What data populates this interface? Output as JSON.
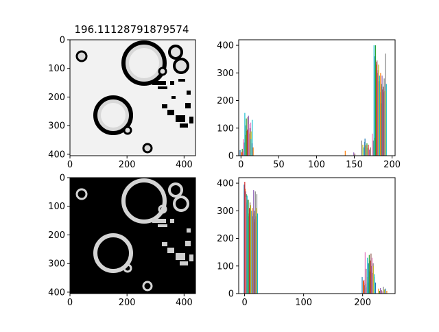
{
  "figure_title": "196.11128791879574",
  "colors": {
    "axes": "#000000",
    "background": "#ffffff",
    "cycle": [
      "#1f77b4",
      "#ff7f0e",
      "#2ca02c",
      "#d62728",
      "#9467bd",
      "#8c564b",
      "#e377c2",
      "#7f7f7f",
      "#bcbd22",
      "#17becf"
    ]
  },
  "chart_data": [
    {
      "type": "image",
      "panel": "top-left",
      "title": "196.11128791879574",
      "description_kind": "grayscale photo of rings with dark thresholded boundaries on light background",
      "xlim": [
        0,
        440
      ],
      "ylim": [
        405,
        0
      ],
      "xticks": [
        0,
        200,
        400
      ],
      "yticks": [
        0,
        100,
        200,
        300,
        400
      ]
    },
    {
      "type": "bar",
      "panel": "top-right",
      "title": "",
      "xlim": [
        -3,
        204
      ],
      "ylim": [
        0,
        420
      ],
      "xticks": [
        0,
        50,
        100,
        150,
        200
      ],
      "yticks": [
        0,
        100,
        200,
        300,
        400
      ],
      "grid": false,
      "series": [
        {
          "x": 1,
          "values": [
            20,
            12,
            25,
            6
          ]
        },
        {
          "x": 3,
          "values": [
            14,
            8,
            18
          ]
        },
        {
          "x": 6,
          "values": [
            60,
            48,
            75,
            42,
            55
          ]
        },
        {
          "x": 8,
          "values": [
            155,
            110,
            90,
            130,
            70
          ]
        },
        {
          "x": 10,
          "values": [
            135,
            95,
            145,
            80,
            120
          ]
        },
        {
          "x": 12,
          "values": [
            140,
            115,
            100,
            88,
            130
          ]
        },
        {
          "x": 14,
          "values": [
            85,
            60,
            45,
            30
          ]
        },
        {
          "x": 138,
          "values": [
            18
          ]
        },
        {
          "x": 150,
          "values": [
            12,
            8
          ]
        },
        {
          "x": 162,
          "values": [
            55,
            40,
            30,
            62
          ]
        },
        {
          "x": 166,
          "values": [
            50,
            38,
            45,
            28
          ]
        },
        {
          "x": 170,
          "values": [
            40,
            22,
            30
          ]
        },
        {
          "x": 176,
          "values": [
            80,
            55,
            65,
            40
          ]
        },
        {
          "x": 179,
          "values": [
            400,
            360,
            330,
            290,
            250
          ]
        },
        {
          "x": 181,
          "values": [
            400,
            340,
            300,
            270,
            210
          ]
        },
        {
          "x": 183,
          "values": [
            345,
            310,
            260,
            230,
            190
          ]
        },
        {
          "x": 185,
          "values": [
            330,
            290,
            250,
            240,
            200
          ]
        },
        {
          "x": 187,
          "values": [
            300,
            260,
            240,
            230
          ]
        },
        {
          "x": 189,
          "values": [
            290,
            250,
            235,
            370
          ]
        },
        {
          "x": 191,
          "values": [
            280,
            235,
            260
          ]
        }
      ]
    },
    {
      "type": "image",
      "panel": "bottom-left",
      "title": "",
      "description_kind": "inverted binary image: white rings on black background",
      "xlim": [
        0,
        440
      ],
      "ylim": [
        405,
        0
      ],
      "xticks": [
        0,
        200,
        400
      ],
      "yticks": [
        0,
        100,
        200,
        300,
        400
      ]
    },
    {
      "type": "bar",
      "panel": "bottom-right",
      "title": "",
      "xlim": [
        -10,
        255
      ],
      "ylim": [
        0,
        420
      ],
      "xticks": [
        0,
        100,
        200
      ],
      "yticks": [
        0,
        100,
        200,
        300,
        400
      ],
      "grid": false,
      "series": [
        {
          "x": 2,
          "values": [
            395,
            380,
            360,
            340
          ]
        },
        {
          "x": 4,
          "values": [
            405,
            370,
            320,
            300,
            280
          ]
        },
        {
          "x": 6,
          "values": [
            350,
            330,
            300,
            290,
            260
          ]
        },
        {
          "x": 8,
          "values": [
            355,
            320,
            290,
            270,
            250
          ]
        },
        {
          "x": 10,
          "values": [
            340,
            310,
            300,
            260,
            240
          ]
        },
        {
          "x": 12,
          "values": [
            330,
            300,
            290,
            280
          ]
        },
        {
          "x": 14,
          "values": [
            320,
            300,
            280,
            260,
            255
          ]
        },
        {
          "x": 16,
          "values": [
            310,
            290,
            270,
            260
          ]
        },
        {
          "x": 18,
          "values": [
            375,
            300,
            280,
            360
          ]
        },
        {
          "x": 20,
          "values": [
            370,
            310,
            290
          ]
        },
        {
          "x": 202,
          "values": [
            60,
            45,
            30,
            20
          ]
        },
        {
          "x": 205,
          "values": [
            50,
            40,
            35,
            25
          ]
        },
        {
          "x": 208,
          "values": [
            150,
            90,
            60,
            40,
            30
          ]
        },
        {
          "x": 211,
          "values": [
            130,
            110,
            80,
            55
          ]
        },
        {
          "x": 214,
          "values": [
            140,
            120,
            100,
            75
          ]
        },
        {
          "x": 217,
          "values": [
            145,
            130,
            110,
            60
          ]
        },
        {
          "x": 220,
          "values": [
            100,
            70,
            40
          ]
        },
        {
          "x": 228,
          "values": [
            18,
            10
          ]
        },
        {
          "x": 232,
          "values": [
            20,
            12,
            8
          ]
        },
        {
          "x": 236,
          "values": [
            25,
            15
          ]
        },
        {
          "x": 240,
          "values": [
            18,
            10
          ]
        }
      ]
    }
  ]
}
